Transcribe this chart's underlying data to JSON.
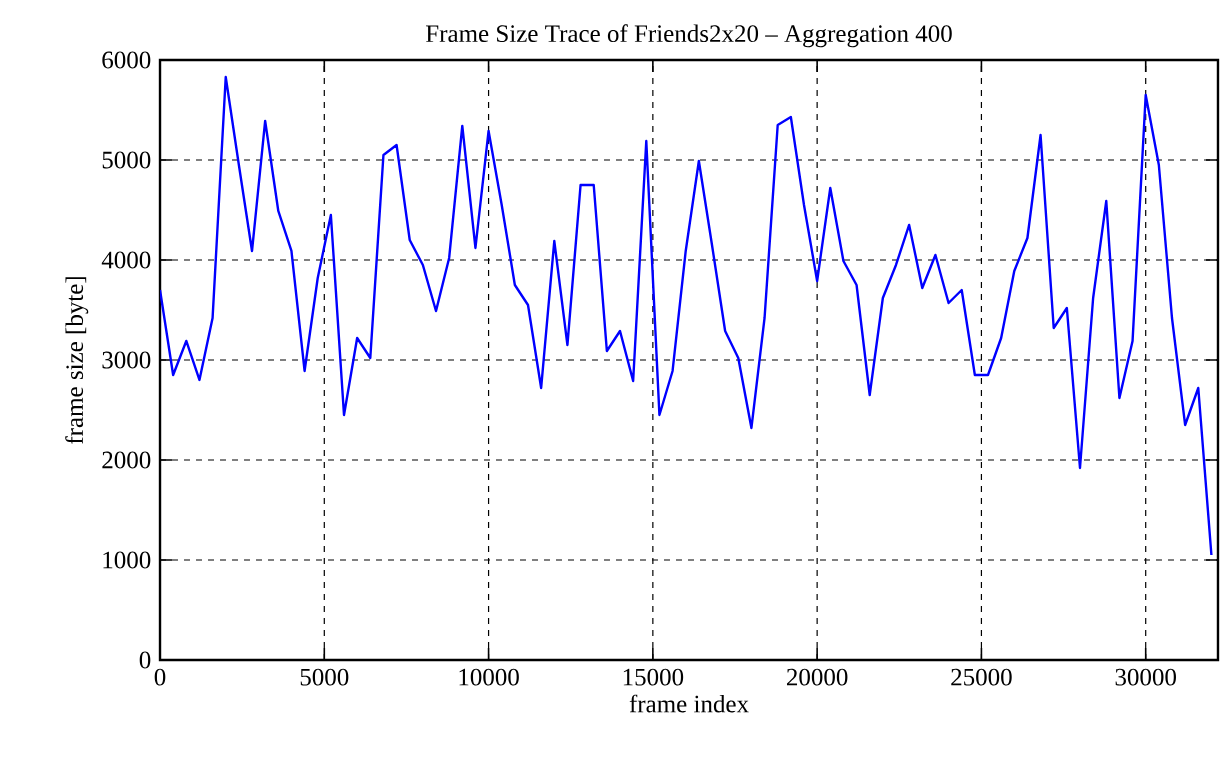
{
  "chart_data": {
    "type": "line",
    "title": "Frame Size Trace of Friends2x20 – Aggregation 400",
    "xlabel": "frame index",
    "ylabel": "frame size [byte]",
    "xlim": [
      0,
      32200
    ],
    "ylim": [
      0,
      6000
    ],
    "xticks": [
      0,
      5000,
      10000,
      15000,
      20000,
      25000,
      30000
    ],
    "yticks": [
      0,
      1000,
      2000,
      3000,
      4000,
      5000,
      6000
    ],
    "grid": true,
    "series": [
      {
        "color": "#0000ff",
        "x": [
          0,
          400,
          800,
          1200,
          1600,
          2000,
          2400,
          2800,
          3200,
          3600,
          4000,
          4400,
          4800,
          5200,
          5600,
          6000,
          6400,
          6800,
          7200,
          7600,
          8000,
          8400,
          8800,
          9200,
          9600,
          10000,
          10400,
          10800,
          11200,
          11600,
          12000,
          12400,
          12800,
          13200,
          13600,
          14000,
          14400,
          14800,
          15200,
          15600,
          16000,
          16400,
          16800,
          17200,
          17600,
          18000,
          18400,
          18800,
          19200,
          19600,
          20000,
          20400,
          20800,
          21200,
          21600,
          22000,
          22400,
          22800,
          23200,
          23600,
          24000,
          24400,
          24800,
          25200,
          25600,
          26000,
          26400,
          26800,
          27200,
          27600,
          28000,
          28400,
          28800,
          29200,
          29600,
          30000,
          30400,
          30800,
          31200,
          31600,
          32000
        ],
        "values": [
          3700,
          2850,
          3190,
          2800,
          3420,
          5830,
          4950,
          4090,
          5390,
          4490,
          4090,
          2890,
          3820,
          4450,
          2450,
          3220,
          3020,
          5050,
          5150,
          4200,
          3950,
          3490,
          4020,
          5340,
          4120,
          5290,
          4550,
          3750,
          3550,
          2720,
          4190,
          3150,
          4750,
          4750,
          3090,
          3290,
          2790,
          5190,
          2450,
          2890,
          4090,
          4990,
          4150,
          3290,
          3020,
          2320,
          3420,
          5350,
          5430,
          4550,
          3790,
          4720,
          3990,
          3750,
          2650,
          3620,
          3950,
          4350,
          3720,
          4050,
          3570,
          3700,
          2850,
          2850,
          3220,
          3890,
          4220,
          5250,
          3320,
          3520,
          1920,
          3620,
          4590,
          2620,
          3190,
          5650,
          4950,
          3420,
          2350,
          2720,
          1050
        ]
      }
    ]
  }
}
